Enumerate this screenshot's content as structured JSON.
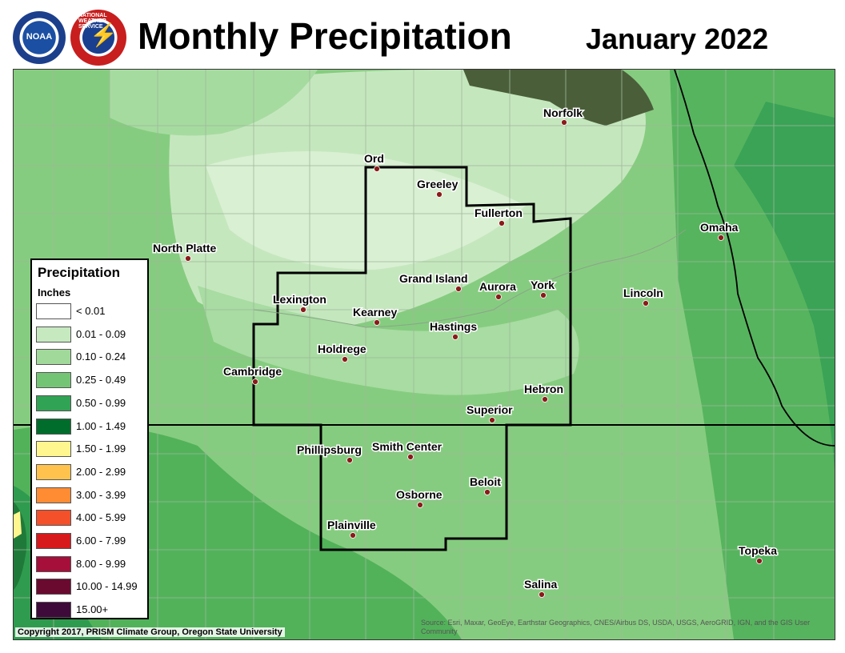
{
  "header": {
    "title": "Monthly Precipitation",
    "date": "January 2022",
    "logos": [
      {
        "name": "NOAA logo",
        "text": "NOAA"
      },
      {
        "name": "National Weather Service logo",
        "text": "NATIONAL WEATHER SERVICE"
      }
    ]
  },
  "legend": {
    "title": "Precipitation",
    "units": "Inches",
    "items": [
      {
        "label": "< 0.01",
        "color": "#ffffff"
      },
      {
        "label": "0.01 - 0.09",
        "color": "#c7e9c0"
      },
      {
        "label": "0.10 - 0.24",
        "color": "#a1d99b"
      },
      {
        "label": "0.25 - 0.49",
        "color": "#74c476"
      },
      {
        "label": "0.50 - 0.99",
        "color": "#31a354"
      },
      {
        "label": "1.00 - 1.49",
        "color": "#006d2c"
      },
      {
        "label": "1.50 - 1.99",
        "color": "#fff68f"
      },
      {
        "label": "2.00 - 2.99",
        "color": "#ffc34d"
      },
      {
        "label": "3.00 - 3.99",
        "color": "#ff8c33"
      },
      {
        "label": "4.00 - 5.99",
        "color": "#f4502a"
      },
      {
        "label": "6.00 - 7.99",
        "color": "#d7191c"
      },
      {
        "label": "8.00 - 9.99",
        "color": "#a50f3a"
      },
      {
        "label": "10.00 - 14.99",
        "color": "#6a0a2e"
      },
      {
        "label": "15.00+",
        "color": "#3d0a3a"
      }
    ]
  },
  "cities": [
    {
      "name": "Norfolk"
    },
    {
      "name": "Ord"
    },
    {
      "name": "Greeley"
    },
    {
      "name": "Fullerton"
    },
    {
      "name": "Omaha"
    },
    {
      "name": "North Platte"
    },
    {
      "name": "Grand Island"
    },
    {
      "name": "Aurora"
    },
    {
      "name": "York"
    },
    {
      "name": "Lincoln"
    },
    {
      "name": "Lexington"
    },
    {
      "name": "Kearney"
    },
    {
      "name": "Hastings"
    },
    {
      "name": "Holdrege"
    },
    {
      "name": "Cambridge"
    },
    {
      "name": "Hebron"
    },
    {
      "name": "Superior"
    },
    {
      "name": "Phillipsburg"
    },
    {
      "name": "Smith Center"
    },
    {
      "name": "Beloit"
    },
    {
      "name": "Osborne"
    },
    {
      "name": "Plainville"
    },
    {
      "name": "Topeka"
    },
    {
      "name": "Salina"
    }
  ],
  "footer": {
    "copyright": "Copyright 2017, PRISM Climate Group, Oregon State University",
    "source": "Source: Esri, Maxar, GeoEye, Earthstar Geographics, CNES/Airbus DS, USDA, USGS, AeroGRID, IGN, and the GIS User Community"
  },
  "colors": {
    "map_base": "#8fcf8a",
    "imagery_patch": "#4a5e3a"
  }
}
